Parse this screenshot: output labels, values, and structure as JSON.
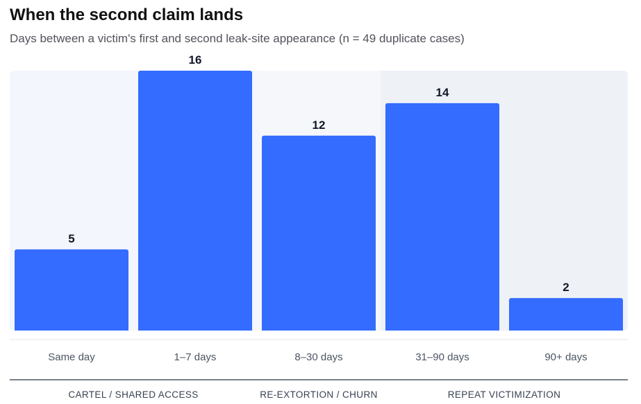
{
  "title": "When the second claim lands",
  "subtitle": "Days between a victim's first and second leak-site appearance (n = 49 duplicate cases)",
  "chart_data": {
    "type": "bar",
    "categories": [
      "Same day",
      "1–7 days",
      "8–30 days",
      "31–90 days",
      "90+ days"
    ],
    "values": [
      5,
      16,
      12,
      14,
      2
    ],
    "ylim": [
      0,
      16
    ],
    "grid": false,
    "groups": [
      {
        "label": "CARTEL / SHARED ACCESS",
        "categories": [
          "Same day",
          "1–7 days"
        ],
        "shade": "#f3f6fc"
      },
      {
        "label": "RE-EXTORTION / CHURN",
        "categories": [
          "8–30 days"
        ],
        "shade": "#f5f7fb"
      },
      {
        "label": "REPEAT VICTIMIZATION",
        "categories": [
          "31–90 days",
          "90+ days"
        ],
        "shade": "#eef1f6"
      }
    ],
    "colors": {
      "bar": "#346cff"
    }
  }
}
